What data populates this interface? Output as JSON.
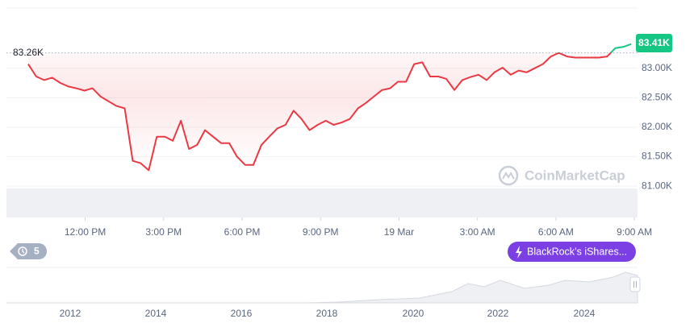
{
  "chart_data": {
    "type": "line",
    "x": [
      9.82,
      10.13,
      10.43,
      10.74,
      11.05,
      11.36,
      11.66,
      11.97,
      12.28,
      12.59,
      12.89,
      13.2,
      13.51,
      13.82,
      14.12,
      14.43,
      14.74,
      15.05,
      15.35,
      15.66,
      15.97,
      16.28,
      16.58,
      16.89,
      17.2,
      17.51,
      17.81,
      18.12,
      18.43,
      18.74,
      19.04,
      19.35,
      19.66,
      19.97,
      20.27,
      20.58,
      20.89,
      21.2,
      21.5,
      21.81,
      22.12,
      22.43,
      22.73,
      23.04,
      23.35,
      23.66,
      23.96,
      24.27,
      24.58,
      24.89,
      25.19,
      25.5,
      25.81,
      26.12,
      26.42,
      26.73,
      27.04,
      27.35,
      27.65,
      27.96,
      28.27,
      28.58,
      28.88,
      29.19,
      29.5,
      29.81,
      30.11,
      30.42,
      30.73,
      31.04,
      31.34,
      31.65,
      31.96,
      32.27,
      32.57,
      32.88
    ],
    "values": [
      83070,
      82860,
      82800,
      82840,
      82750,
      82690,
      82660,
      82620,
      82660,
      82520,
      82440,
      82360,
      82320,
      81430,
      81390,
      81270,
      81840,
      81840,
      81770,
      82110,
      81630,
      81700,
      81950,
      81840,
      81730,
      81730,
      81500,
      81360,
      81360,
      81700,
      81840,
      81980,
      82040,
      82280,
      82140,
      81950,
      82040,
      82110,
      82040,
      82080,
      82140,
      82320,
      82410,
      82520,
      82630,
      82660,
      82770,
      82770,
      83070,
      83100,
      82860,
      82860,
      82820,
      82630,
      82800,
      82850,
      82890,
      82800,
      82930,
      83010,
      82890,
      82960,
      82930,
      83000,
      83070,
      83200,
      83260,
      83200,
      83180,
      83180,
      83180,
      83180,
      83200,
      83340,
      83360,
      83410
    ],
    "color": "#ea3943",
    "up_color": "#16c784",
    "reference": {
      "value": 83260,
      "label": "83.26K"
    },
    "current_price_label": "83.41K",
    "xlim": [
      8.99,
      33.12
    ],
    "xticks": [
      {
        "value": 12,
        "label": "12:00 PM"
      },
      {
        "value": 15,
        "label": "3:00 PM"
      },
      {
        "value": 18,
        "label": "6:00 PM"
      },
      {
        "value": 21,
        "label": "9:00 PM"
      },
      {
        "value": 24,
        "label": "19 Mar"
      },
      {
        "value": 27,
        "label": "3:00 AM"
      },
      {
        "value": 30,
        "label": "6:00 AM"
      },
      {
        "value": 33,
        "label": "9:00 AM"
      }
    ],
    "ylim": [
      80470,
      84020
    ],
    "yticks": [
      {
        "value": 81000,
        "label": "81.00K"
      },
      {
        "value": 81500,
        "label": "81.50K"
      },
      {
        "value": 82000,
        "label": "82.00K"
      },
      {
        "value": 82500,
        "label": "82.50K"
      },
      {
        "value": 83000,
        "label": "83.00K"
      }
    ],
    "grid": true,
    "watermark": "CoinMarketCap",
    "history_count": 5,
    "event_label": "BlackRock’s iShares...",
    "navigator": {
      "xticks": [
        "2012",
        "2014",
        "2016",
        "2018",
        "2020",
        "2022",
        "2024"
      ]
    }
  }
}
